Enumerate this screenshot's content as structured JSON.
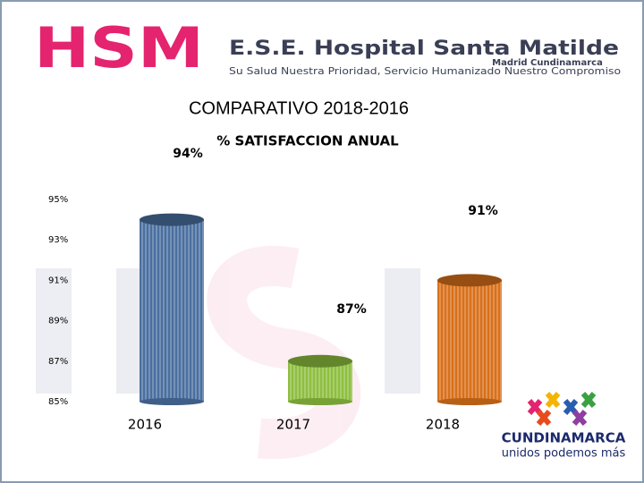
{
  "header": {
    "logo": "HSM",
    "name": "E.S.E. Hospital Santa Matilde",
    "place": "Madrid Cundinamarca",
    "slogan": "Su Salud Nuestra Prioridad, Servicio Humanizado Nuestro Compromiso"
  },
  "slide_title": "COMPARATIVO 2018-2016",
  "chart_data": {
    "type": "bar",
    "title": "% SATISFACCION ANUAL",
    "categories": [
      "2016",
      "2017",
      "2018"
    ],
    "values": [
      94,
      87,
      91
    ],
    "value_labels": [
      "94%",
      "87%",
      "91%"
    ],
    "colors": [
      "#4a6fa0",
      "#8dbf3f",
      "#d8701a"
    ],
    "ylim": [
      85,
      95
    ],
    "yticks": [
      {
        "value": 85,
        "label": "85%"
      },
      {
        "value": 87,
        "label": "87%"
      },
      {
        "value": 89,
        "label": "89%"
      },
      {
        "value": 91,
        "label": "91%"
      },
      {
        "value": 93,
        "label": "93%"
      },
      {
        "value": 95,
        "label": "95%"
      }
    ],
    "grid": false
  },
  "footer_logo": {
    "name": "CUNDINAMARCA",
    "slogan": "unidos podemos más"
  }
}
